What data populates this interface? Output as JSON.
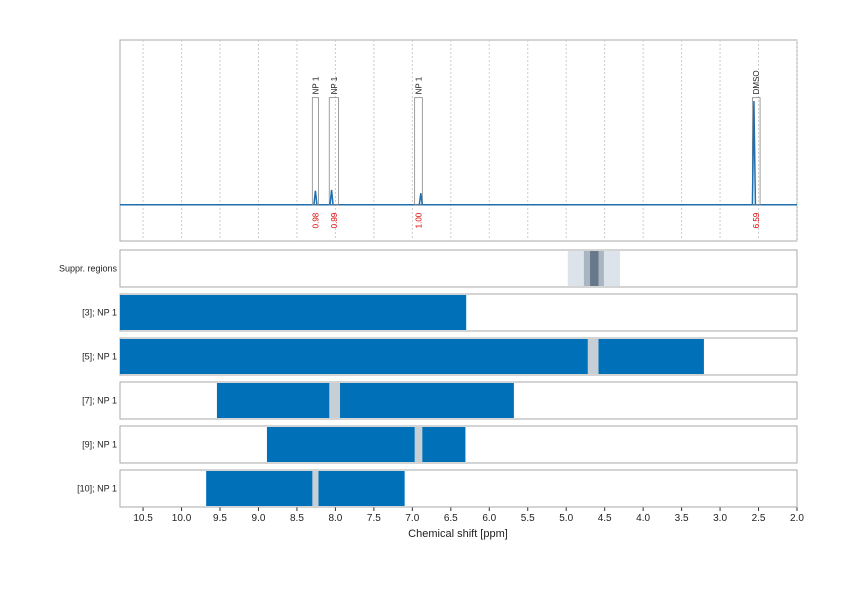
{
  "chart_data": {
    "type": "nmr",
    "xlabel": "Chemical shift [ppm]",
    "xlim": [
      10.8,
      2.0
    ],
    "xticks": [
      10.5,
      {
        "value": 10,
        "label": "10.0"
      },
      9.5,
      {
        "value": 9,
        "label": "9.0"
      },
      8.5,
      {
        "value": 8,
        "label": "8.0"
      },
      7.5,
      {
        "value": 7,
        "label": "7.0"
      },
      6.5,
      {
        "value": 6,
        "label": "6.0"
      },
      5.5,
      {
        "value": 5,
        "label": "5.0"
      },
      4.5,
      {
        "value": 4,
        "label": "4.0"
      },
      3.5,
      {
        "value": 3,
        "label": "3.0"
      },
      2.5,
      {
        "value": 2,
        "label": "2.0"
      }
    ],
    "grid": true,
    "spectrum": {
      "color": "#1f6fb0",
      "ylim": [
        -0.22,
        1
      ],
      "peaks": [
        {
          "ppm": 8.26,
          "height": 0.085
        },
        {
          "ppm": 8.05,
          "height": 0.09
        },
        {
          "ppm": 6.89,
          "height": 0.07
        },
        {
          "ppm": 2.56,
          "height": 0.63
        }
      ],
      "regions": [
        {
          "label": "NP 1",
          "range": [
            8.3,
            8.22
          ],
          "integral": 0.98,
          "integral_label": "0.98"
        },
        {
          "label": "NP 1",
          "range": [
            8.08,
            7.96
          ],
          "integral": 0.99,
          "integral_label": "0.99"
        },
        {
          "label": "NP 1",
          "range": [
            6.97,
            6.87
          ],
          "integral": 1.0,
          "integral_label": "1.00"
        },
        {
          "label": "DMSO",
          "range": [
            2.58,
            2.48
          ],
          "integral": 6.59,
          "integral_label": "6.59"
        }
      ]
    },
    "suppression": {
      "label": "Suppr. regions",
      "bands": [
        {
          "range": [
            4.98,
            4.3
          ],
          "color": "#dde3ea"
        },
        {
          "range": [
            4.77,
            4.51
          ],
          "color": "#a9b5c1"
        },
        {
          "range": [
            4.69,
            4.58
          ],
          "color": "#66788a"
        }
      ]
    },
    "rows": [
      {
        "name": "[3]; NP 1",
        "range": [
          10.8,
          6.3
        ],
        "gaps": []
      },
      {
        "name": "[5]; NP 1",
        "range": [
          10.8,
          3.21
        ],
        "gaps": [
          [
            4.72,
            4.58
          ]
        ]
      },
      {
        "name": "[7]; NP 1",
        "range": [
          9.54,
          5.68
        ],
        "gaps": [
          [
            8.08,
            7.94
          ]
        ]
      },
      {
        "name": "[9]; NP 1",
        "range": [
          8.89,
          6.31
        ],
        "gaps": [
          [
            6.97,
            6.87
          ]
        ]
      },
      {
        "name": "[10]; NP 1",
        "range": [
          9.68,
          7.1
        ],
        "gaps": [
          [
            8.3,
            8.22
          ]
        ]
      }
    ],
    "bar_color": "#0070b8",
    "gap_color": "#c6ced6"
  }
}
